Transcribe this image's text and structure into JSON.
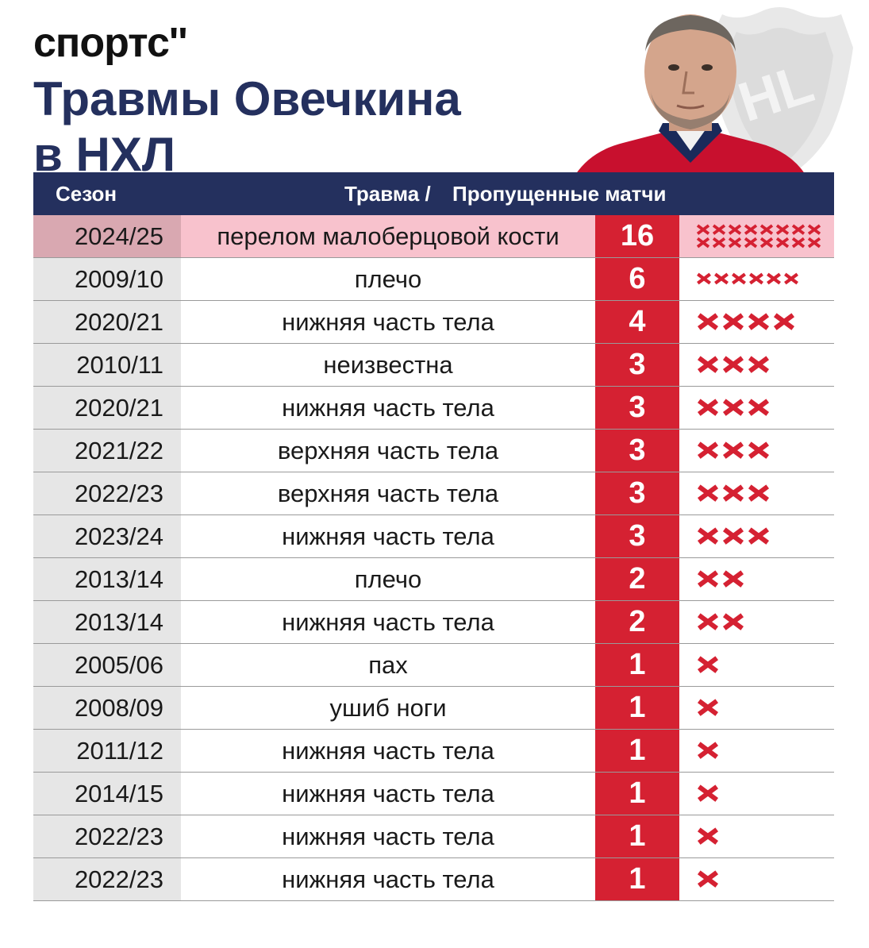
{
  "brand": {
    "logo_text": "спортс''"
  },
  "header": {
    "title_line1": "Травмы Овечкина",
    "title_line2": "в НХЛ"
  },
  "colors": {
    "navy": "#24305e",
    "red": "#d52132",
    "highlight": "#f8c2cd",
    "season_bg": "#e6e6e6"
  },
  "icons": {
    "background": "nhl-shield-icon",
    "photo": "player-photo",
    "mark": "cross-icon"
  },
  "table": {
    "headers": {
      "season": "Сезон",
      "injury": "Травма /",
      "games": "Пропущенные матчи"
    }
  },
  "chart_data": {
    "type": "table",
    "columns": [
      "Сезон",
      "Травма",
      "Пропущенные матчи"
    ],
    "rows": [
      {
        "season": "2024/25",
        "injury": "перелом малоберцовой кости",
        "games": 16,
        "highlight": true
      },
      {
        "season": "2009/10",
        "injury": "плечо",
        "games": 6
      },
      {
        "season": "2020/21",
        "injury": "нижняя часть тела",
        "games": 4
      },
      {
        "season": "2010/11",
        "injury": "неизвестна",
        "games": 3
      },
      {
        "season": "2020/21",
        "injury": "нижняя часть тела",
        "games": 3
      },
      {
        "season": "2021/22",
        "injury": "верхняя часть тела",
        "games": 3
      },
      {
        "season": "2022/23",
        "injury": "верхняя часть тела",
        "games": 3
      },
      {
        "season": "2023/24",
        "injury": "нижняя часть тела",
        "games": 3
      },
      {
        "season": "2013/14",
        "injury": "плечо",
        "games": 2
      },
      {
        "season": "2013/14",
        "injury": "нижняя часть тела",
        "games": 2
      },
      {
        "season": "2005/06",
        "injury": "пах",
        "games": 1
      },
      {
        "season": "2008/09",
        "injury": "ушиб ноги",
        "games": 1
      },
      {
        "season": "2011/12",
        "injury": "нижняя часть тела",
        "games": 1
      },
      {
        "season": "2014/15",
        "injury": "нижняя часть тела",
        "games": 1
      },
      {
        "season": "2022/23",
        "injury": "нижняя часть тела",
        "games": 1
      },
      {
        "season": "2022/23",
        "injury": "нижняя часть тела",
        "games": 1
      }
    ]
  }
}
